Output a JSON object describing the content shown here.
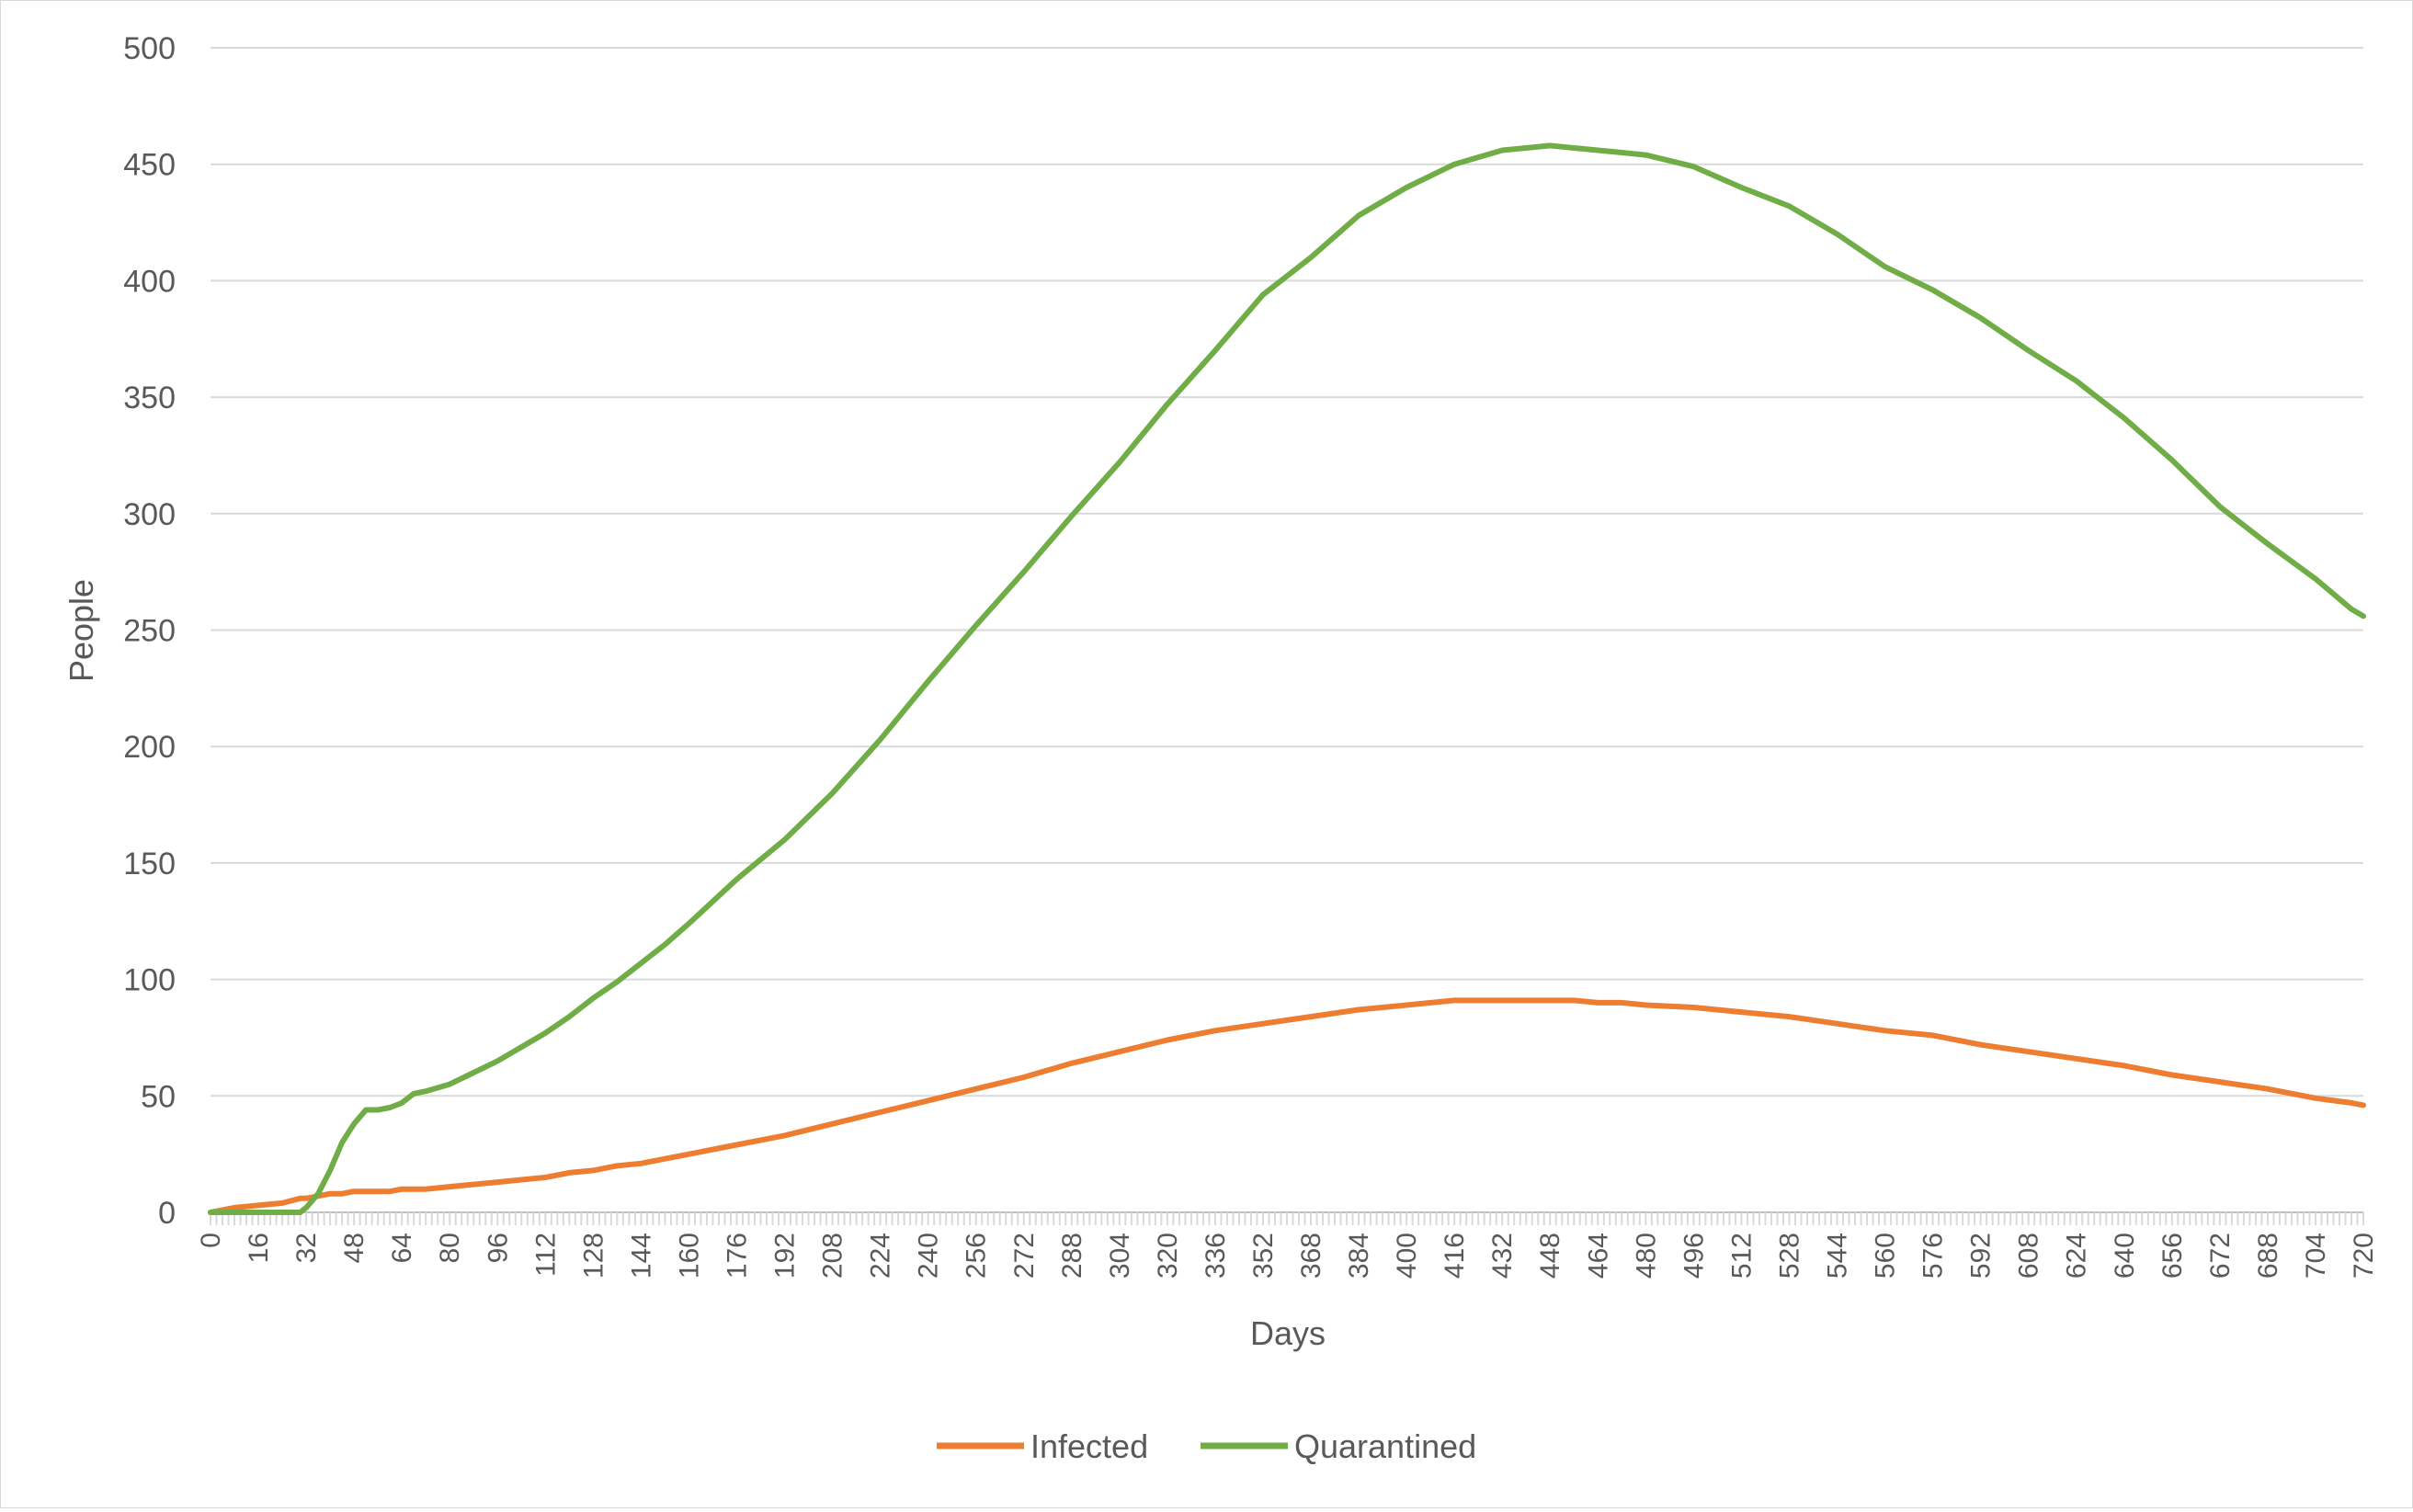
{
  "chart_data": {
    "type": "line",
    "title": "",
    "xlabel": "Days",
    "ylabel": "People",
    "xlim": [
      0,
      720
    ],
    "ylim": [
      0,
      500
    ],
    "yticks": [
      0,
      50,
      100,
      150,
      200,
      250,
      300,
      350,
      400,
      450,
      500
    ],
    "xticks": [
      0,
      16,
      32,
      48,
      64,
      80,
      96,
      112,
      128,
      144,
      160,
      176,
      192,
      208,
      224,
      240,
      256,
      272,
      288,
      304,
      320,
      336,
      352,
      368,
      384,
      400,
      416,
      432,
      448,
      464,
      480,
      496,
      512,
      528,
      544,
      560,
      576,
      592,
      608,
      624,
      640,
      656,
      672,
      688,
      704,
      720
    ],
    "grid": "horizontal",
    "legend": "bottom",
    "x": [
      0,
      8,
      16,
      24,
      30,
      32,
      36,
      40,
      44,
      48,
      52,
      56,
      60,
      64,
      68,
      72,
      80,
      88,
      96,
      104,
      112,
      120,
      128,
      136,
      144,
      152,
      160,
      176,
      192,
      208,
      224,
      240,
      256,
      272,
      288,
      304,
      320,
      336,
      352,
      368,
      384,
      400,
      416,
      432,
      440,
      448,
      456,
      464,
      472,
      480,
      496,
      512,
      528,
      544,
      560,
      576,
      592,
      608,
      624,
      640,
      656,
      672,
      688,
      704,
      716,
      720
    ],
    "series": [
      {
        "name": "Infected",
        "color": "#ED7D31",
        "values": [
          0,
          2,
          3,
          4,
          6,
          6,
          7,
          8,
          8,
          9,
          9,
          9,
          9,
          10,
          10,
          10,
          11,
          12,
          13,
          14,
          15,
          17,
          18,
          20,
          21,
          23,
          25,
          29,
          33,
          38,
          43,
          48,
          53,
          58,
          64,
          69,
          74,
          78,
          81,
          84,
          87,
          89,
          91,
          91,
          91,
          91,
          91,
          90,
          90,
          89,
          88,
          86,
          84,
          81,
          78,
          76,
          72,
          69,
          66,
          63,
          59,
          56,
          53,
          49,
          47,
          46
        ]
      },
      {
        "name": "Quarantined",
        "color": "#70AD47",
        "values": [
          0,
          0,
          0,
          0,
          0,
          2,
          8,
          18,
          30,
          38,
          44,
          44,
          45,
          47,
          51,
          52,
          55,
          60,
          65,
          71,
          77,
          84,
          92,
          99,
          107,
          115,
          124,
          143,
          160,
          180,
          203,
          228,
          252,
          275,
          299,
          322,
          347,
          370,
          394,
          410,
          428,
          440,
          450,
          456,
          457,
          458,
          457,
          456,
          455,
          454,
          449,
          440,
          432,
          420,
          406,
          396,
          384,
          370,
          357,
          341,
          323,
          303,
          287,
          272,
          259,
          256
        ]
      }
    ]
  }
}
